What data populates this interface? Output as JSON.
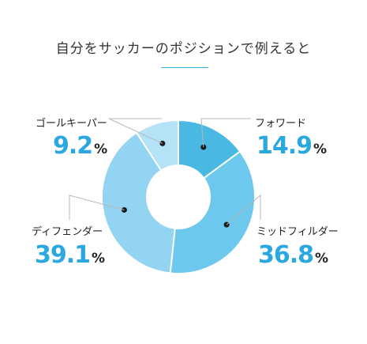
{
  "title": "自分をサッカーのポジションで例えると",
  "colors": {
    "accent": "#2aa8df",
    "rule": "#3fb6e0"
  },
  "chart_data": {
    "type": "pie",
    "donut": true,
    "unit": "%",
    "slices": [
      {
        "label": "フォワード",
        "value": 14.9,
        "display": "14.9",
        "color": "#49b9e4"
      },
      {
        "label": "ミッドフィルダー",
        "value": 36.8,
        "display": "36.8",
        "color": "#6cc8ec"
      },
      {
        "label": "ディフェンダー",
        "value": 39.1,
        "display": "39.1",
        "color": "#92d4f1"
      },
      {
        "label": "ゴールキーパー",
        "value": 9.2,
        "display": "9.2",
        "color": "#b4e2f6"
      }
    ]
  }
}
